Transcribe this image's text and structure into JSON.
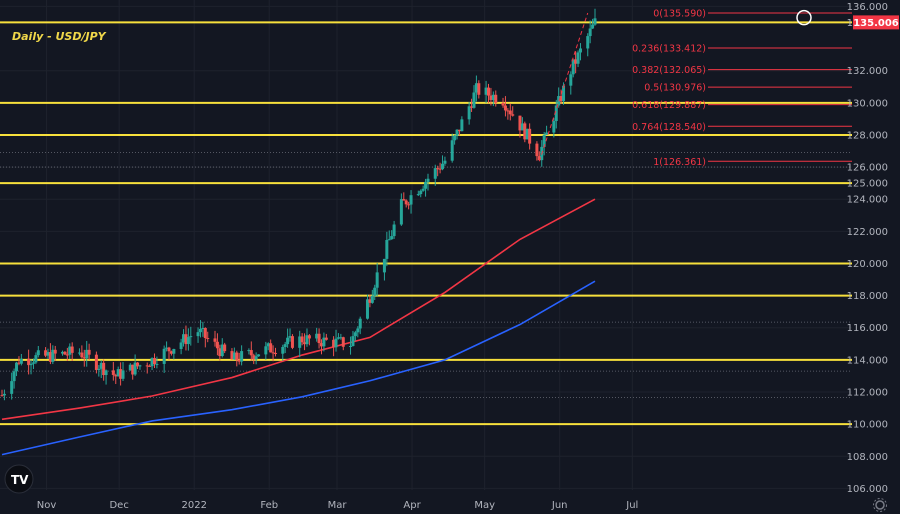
{
  "chart_data": {
    "type": "candlestick",
    "title": "Daily - USD/JPY",
    "ylim": [
      105.9,
      136.4
    ],
    "x_ticks": [
      "Nov",
      "Dec",
      "2022",
      "Feb",
      "Mar",
      "Apr",
      "May",
      "Jun",
      "Jul"
    ],
    "y_ticks": [
      "136.000",
      "135.006",
      "132.000",
      "130.000",
      "128.000",
      "126.000",
      "125.000",
      "124.000",
      "122.000",
      "120.000",
      "118.000",
      "116.000",
      "114.000",
      "112.000",
      "110.000",
      "108.000",
      "106.000"
    ],
    "horizontal_levels": [
      110.0,
      114.0,
      118.0,
      120.0,
      125.0,
      128.0,
      130.0,
      135.006
    ],
    "dotted_levels": [
      126.9,
      126.0,
      116.35,
      113.3,
      111.65
    ],
    "current_price": {
      "label": "135.006",
      "value": 135.006
    },
    "fibonacci": [
      {
        "label": "0(135.590)",
        "value": 135.59
      },
      {
        "label": "0.236(133.412)",
        "value": 133.412
      },
      {
        "label": "0.382(132.065)",
        "value": 132.065
      },
      {
        "label": "0.5(130.976)",
        "value": 130.976
      },
      {
        "label": "0.618(129.887)",
        "value": 129.887
      },
      {
        "label": "0.764(128.540)",
        "value": 128.54
      },
      {
        "label": "1(126.361)",
        "value": 126.361
      }
    ],
    "series": [
      {
        "name": "MA red",
        "color": "#f23645",
        "x": [
          "2021-10-14",
          "2021-11-15",
          "2021-12-15",
          "2022-01-17",
          "2022-02-15",
          "2022-03-15",
          "2022-04-15",
          "2022-05-16",
          "2022-06-16"
        ],
        "values": [
          110.3,
          111.0,
          111.75,
          112.9,
          114.3,
          115.4,
          118.2,
          121.5,
          124.0
        ]
      },
      {
        "name": "MA blue",
        "color": "#2962ff",
        "x": [
          "2021-10-14",
          "2021-11-15",
          "2021-12-15",
          "2022-01-17",
          "2022-02-15",
          "2022-03-15",
          "2022-04-15",
          "2022-05-16",
          "2022-06-16"
        ],
        "values": [
          108.1,
          109.2,
          110.2,
          110.9,
          111.7,
          112.7,
          114.0,
          116.2,
          118.9
        ]
      }
    ],
    "candles_keypoints": {
      "x": [
        "2021-10-14",
        "2021-10-21",
        "2021-11-15",
        "2021-11-30",
        "2021-12-15",
        "2022-01-03",
        "2022-01-17",
        "2022-02-15",
        "2022-03-07",
        "2022-03-15",
        "2022-03-28",
        "2022-04-15",
        "2022-04-28",
        "2022-05-09",
        "2022-05-24",
        "2022-06-06",
        "2022-06-16"
      ],
      "values": [
        111.8,
        114.0,
        114.5,
        113.0,
        114.0,
        115.8,
        114.0,
        115.3,
        115.0,
        118.0,
        123.6,
        126.4,
        130.8,
        130.2,
        126.8,
        132.0,
        135.0
      ]
    }
  }
}
